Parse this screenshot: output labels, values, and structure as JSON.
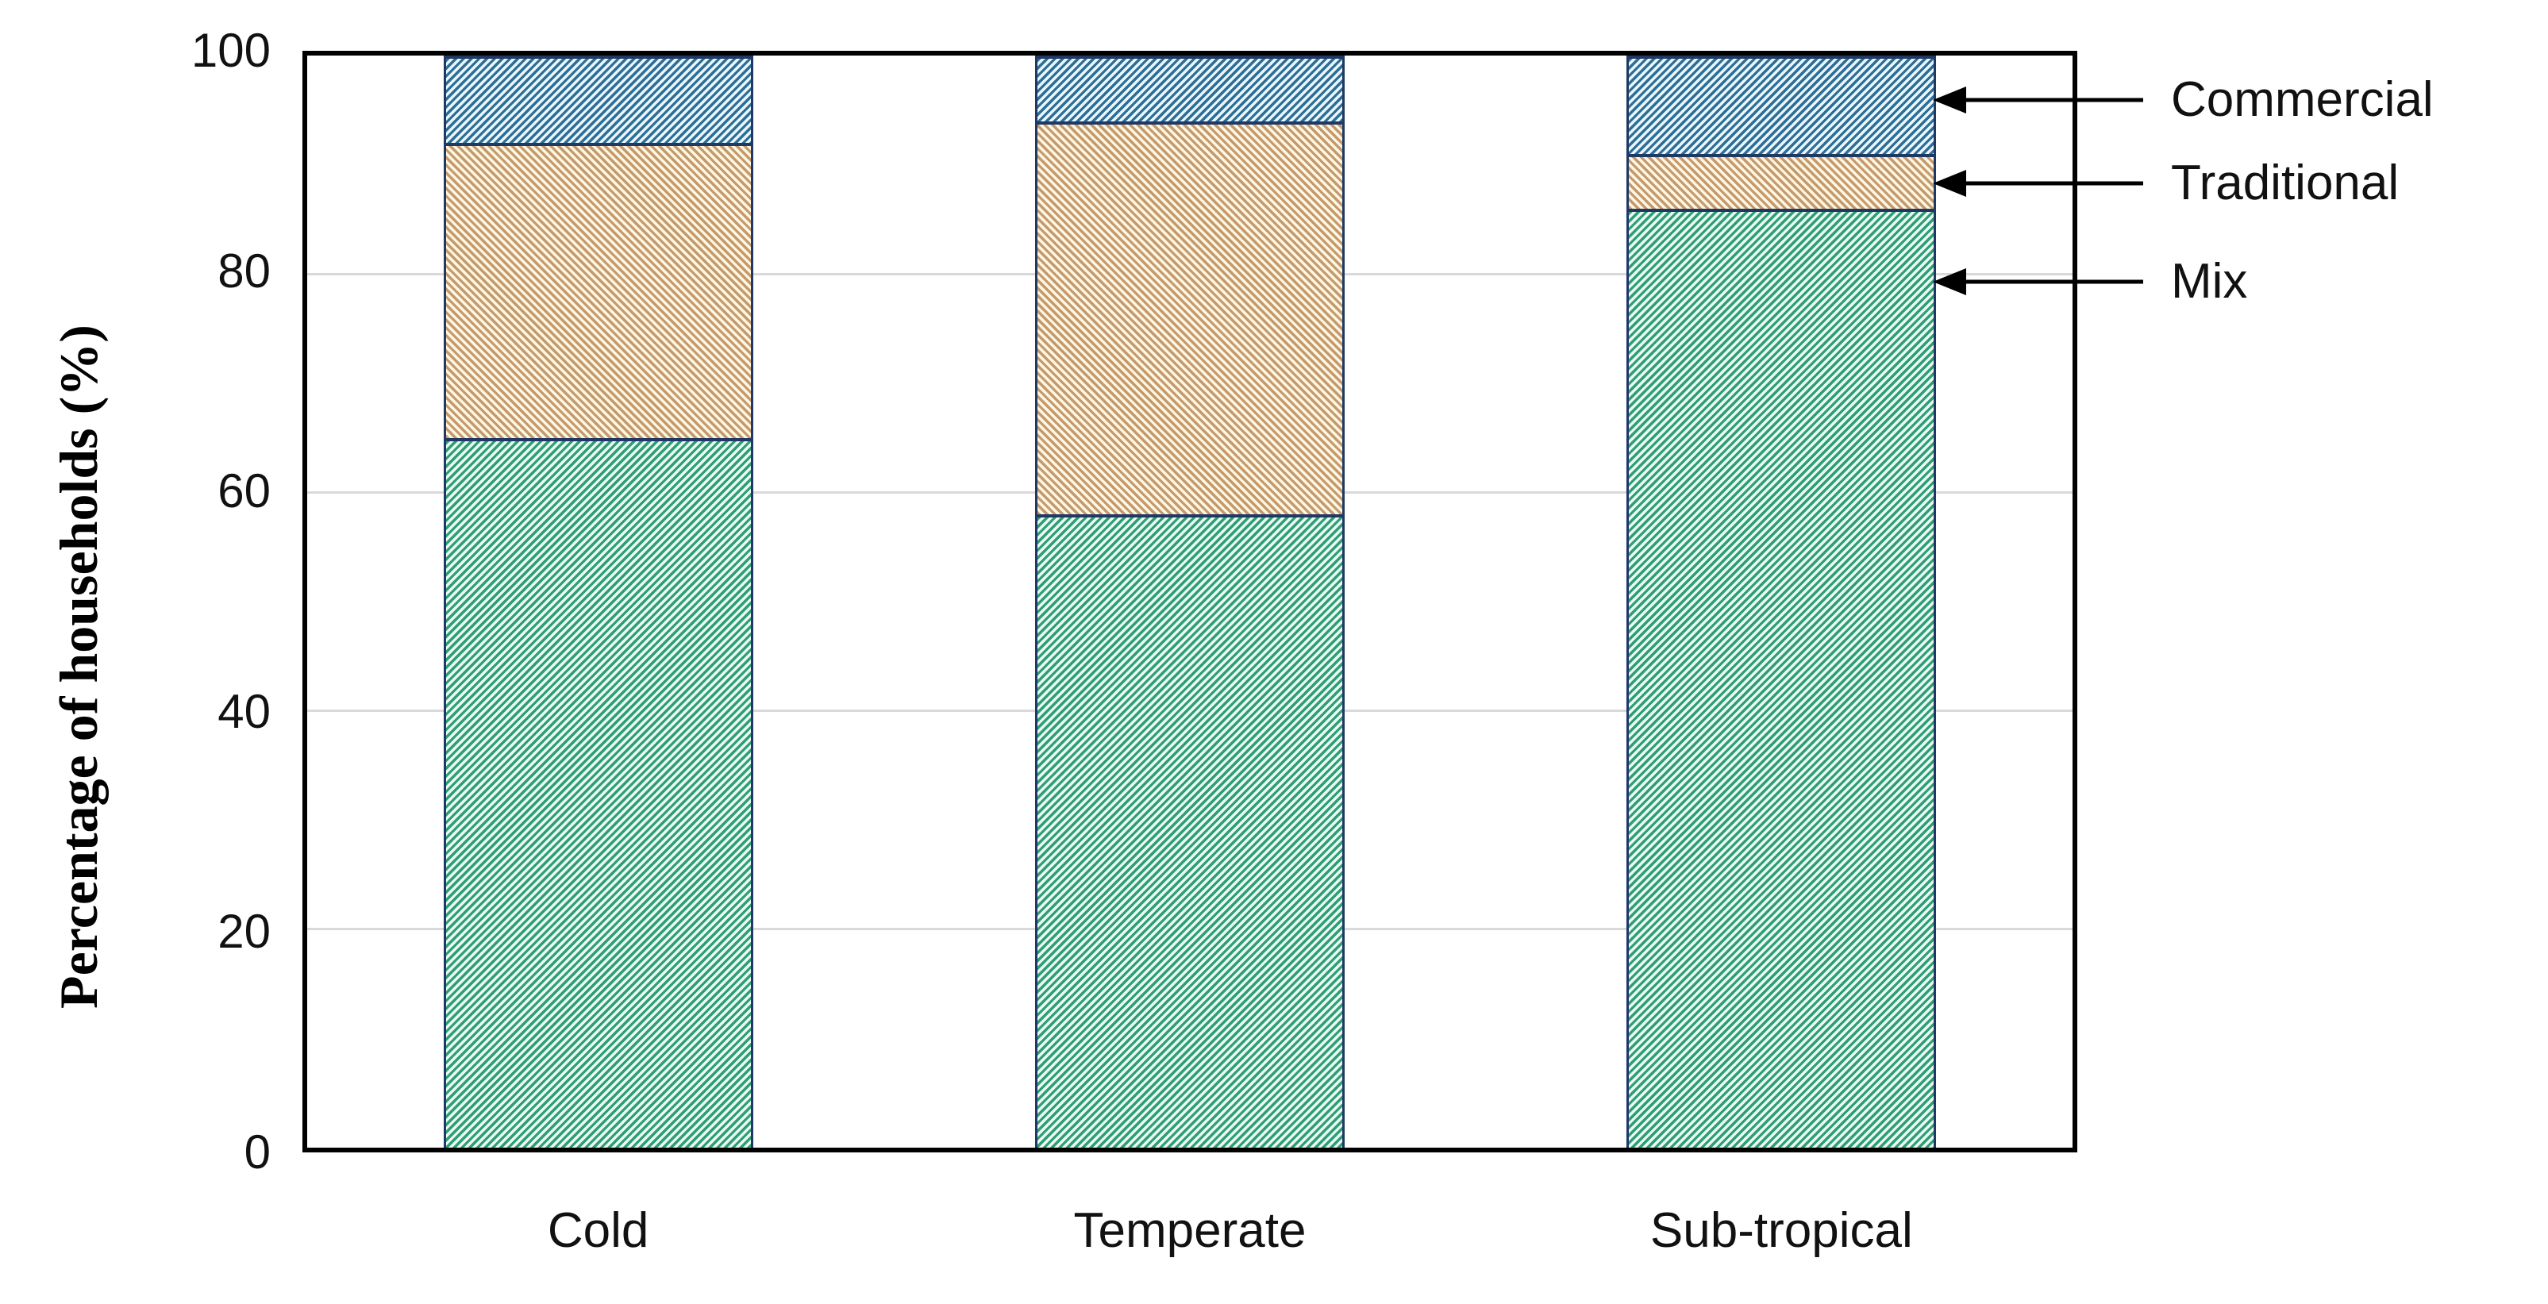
{
  "chart_data": {
    "type": "bar",
    "stacked": true,
    "categories": [
      "Cold",
      "Temperate",
      "Sub-tropical"
    ],
    "series": [
      {
        "name": "Mix",
        "values": [
          65,
          58,
          86
        ],
        "line_color": "#2F9E77",
        "bg_color": "#EAFAF2",
        "hatch": "forward-diagonal"
      },
      {
        "name": "Traditional",
        "values": [
          27,
          36,
          5
        ],
        "line_color": "#C49A6C",
        "bg_color": "#FDF6E2",
        "hatch": "back-diagonal"
      },
      {
        "name": "Commercial",
        "values": [
          8,
          6,
          9
        ],
        "line_color": "#2E6E96",
        "bg_color": "#E9F6FC",
        "hatch": "forward-diagonal"
      }
    ],
    "ylabel": "Percentage of households (%)",
    "xlabel": "",
    "title": "",
    "yticks": [
      0,
      20,
      40,
      60,
      80,
      100
    ],
    "ylim": [
      0,
      100
    ],
    "grid": "horizontal",
    "legend_position": "right-annotations",
    "annotations": [
      {
        "label": "Commercial",
        "series": "Commercial",
        "target_percent": 95.5
      },
      {
        "label": "Traditional",
        "series": "Traditional",
        "target_percent": 88
      },
      {
        "label": "Mix",
        "series": "Mix",
        "target_percent": 79
      }
    ],
    "colors": {
      "segment_border": "#1F3864",
      "frame": "#000000",
      "gridline": "#D9D9D9",
      "text": "#111111",
      "arrow": "#000000",
      "background": "#FFFFFF"
    }
  }
}
